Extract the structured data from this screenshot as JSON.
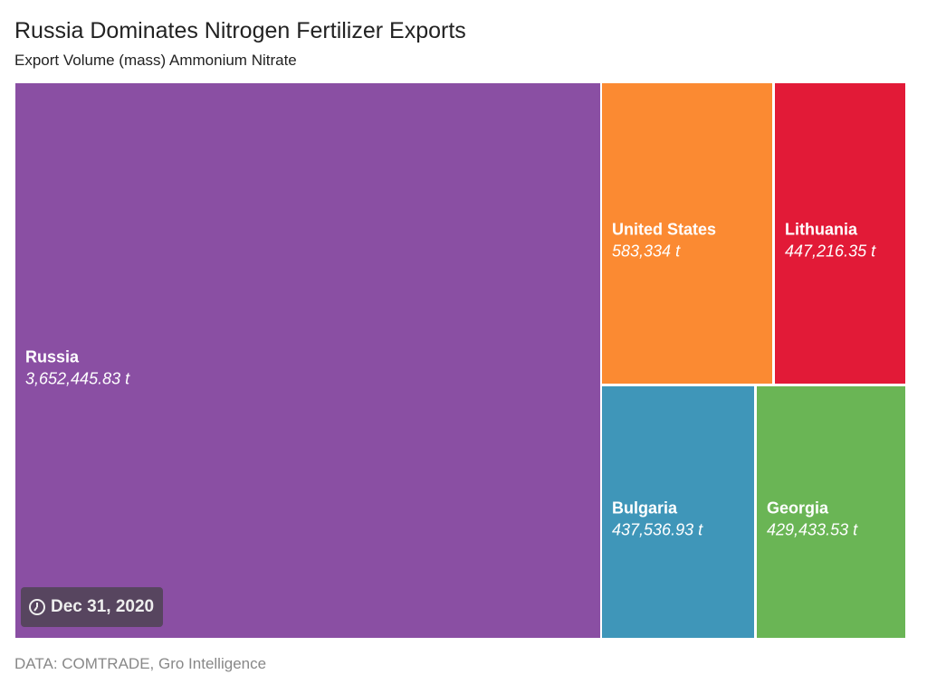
{
  "chart_data": {
    "type": "treemap",
    "title": "Russia Dominates Nitrogen Fertilizer Exports",
    "subtitle": "Export Volume (mass) Ammonium Nitrate",
    "unit": "t",
    "items": [
      {
        "name": "Russia",
        "value": 3652445.83,
        "label": "3,652,445.83 t",
        "color": "#8a4fa3"
      },
      {
        "name": "United States",
        "value": 583334,
        "label": "583,334 t",
        "color": "#fb8a32"
      },
      {
        "name": "Lithuania",
        "value": 447216.35,
        "label": "447,216.35 t",
        "color": "#e21a37"
      },
      {
        "name": "Bulgaria",
        "value": 437536.93,
        "label": "437,536.93 t",
        "color": "#3f96b9"
      },
      {
        "name": "Georgia",
        "value": 429433.53,
        "label": "429,433.53 t",
        "color": "#6ab555"
      }
    ],
    "date": "Dec 31, 2020",
    "source": "DATA: COMTRADE, Gro Intelligence"
  }
}
